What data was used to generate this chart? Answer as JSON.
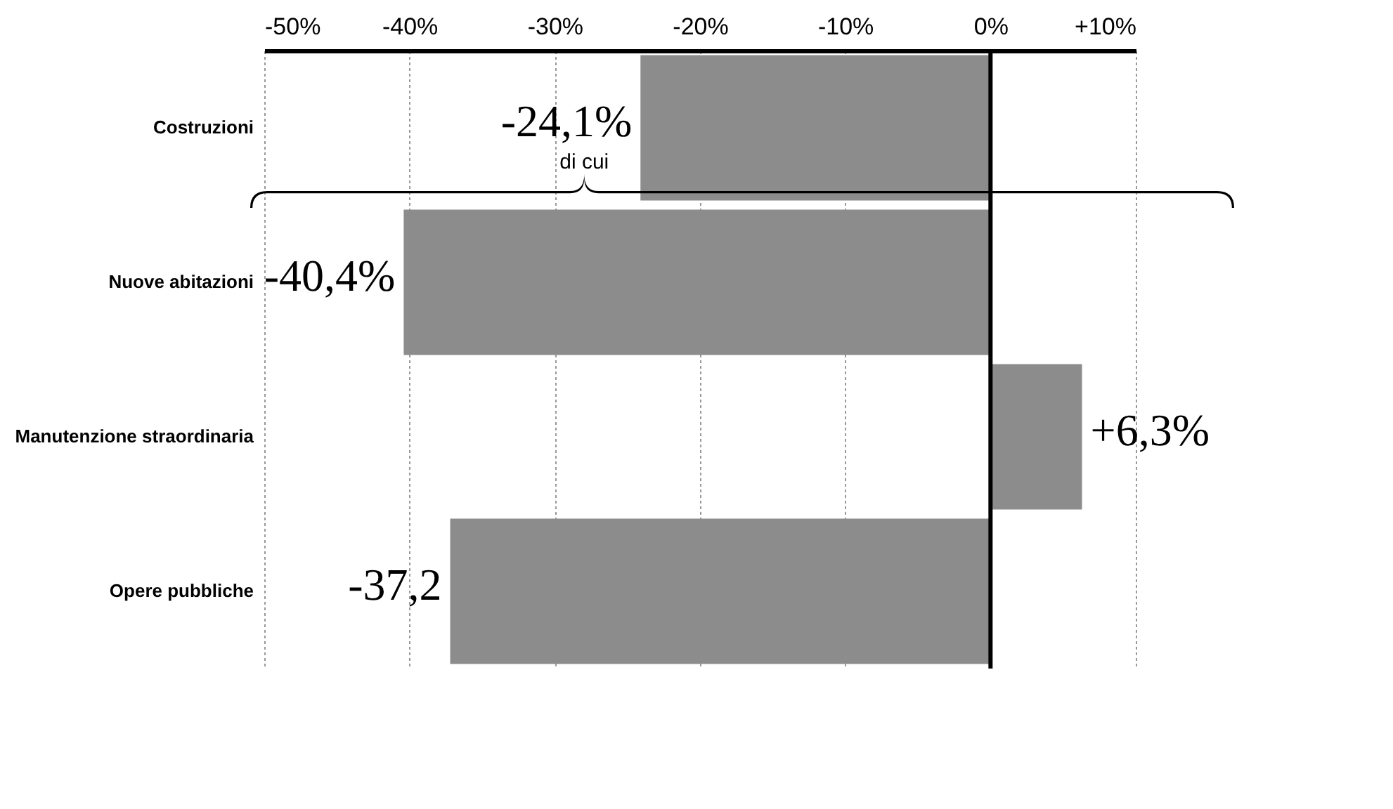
{
  "chart_data": {
    "type": "bar",
    "orientation": "horizontal",
    "categories": [
      "Costruzioni",
      "Nuove abitazioni",
      "Manutenzione straordinaria",
      "Opere pubbliche"
    ],
    "values": [
      -24.1,
      -40.4,
      6.3,
      -37.2
    ],
    "value_labels": [
      "-24,1%",
      "-40,4%",
      "+6,3%",
      "-37,2"
    ],
    "color": "#8c8c8c",
    "xlim": [
      -50,
      10
    ],
    "xticks": [
      {
        "value": -50,
        "label": "-50%"
      },
      {
        "value": -40,
        "label": "-40%"
      },
      {
        "value": -30,
        "label": "-30%"
      },
      {
        "value": -20,
        "label": "-20%"
      },
      {
        "value": -10,
        "label": "-10%"
      },
      {
        "value": 0,
        "label": "0%"
      },
      {
        "value": 10,
        "label": "+10%"
      }
    ],
    "grid": "x",
    "ref_lines": [
      {
        "axis": "x",
        "value": 0,
        "color": "#000000"
      }
    ],
    "annotations": [
      "di cui"
    ]
  }
}
